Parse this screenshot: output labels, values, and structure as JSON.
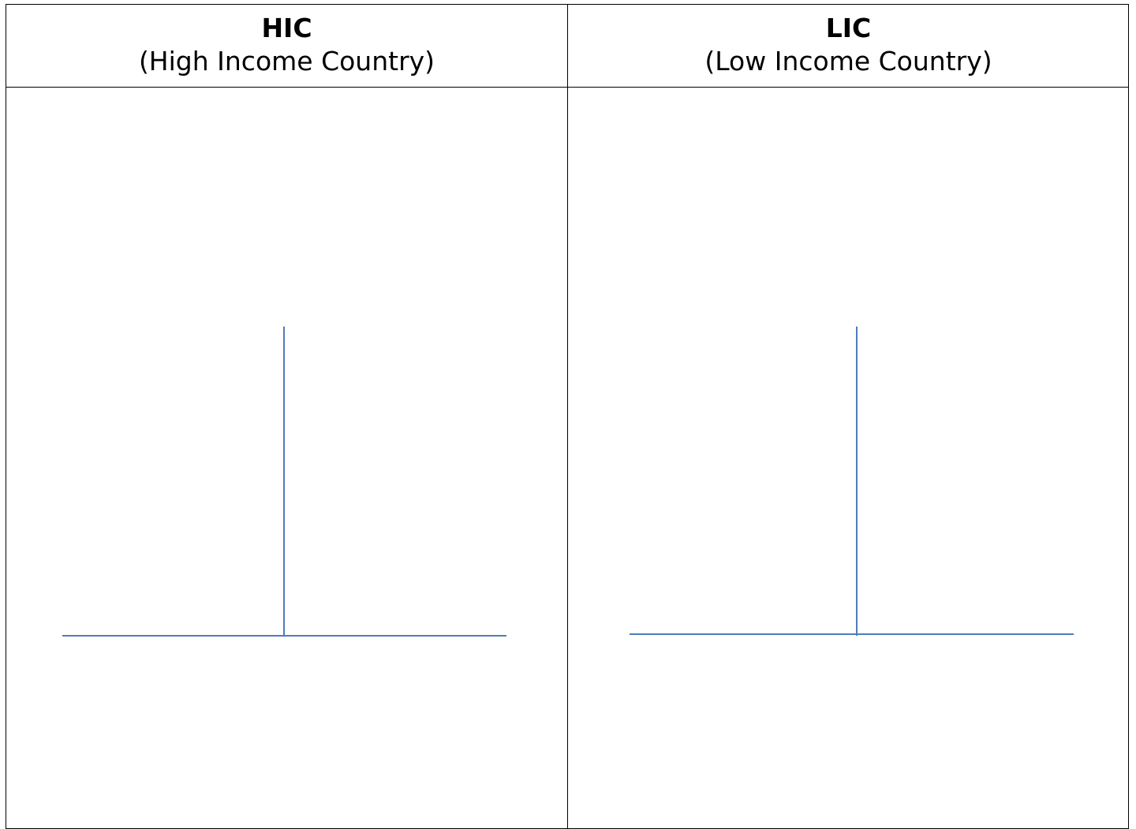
{
  "table": {
    "columns": [
      {
        "abbr": "HIC",
        "full": "(High Income Country)"
      },
      {
        "abbr": "LIC",
        "full": "(Low Income Country)"
      }
    ]
  },
  "colors": {
    "axis_line": "#4f7dbb",
    "border": "#000000"
  }
}
